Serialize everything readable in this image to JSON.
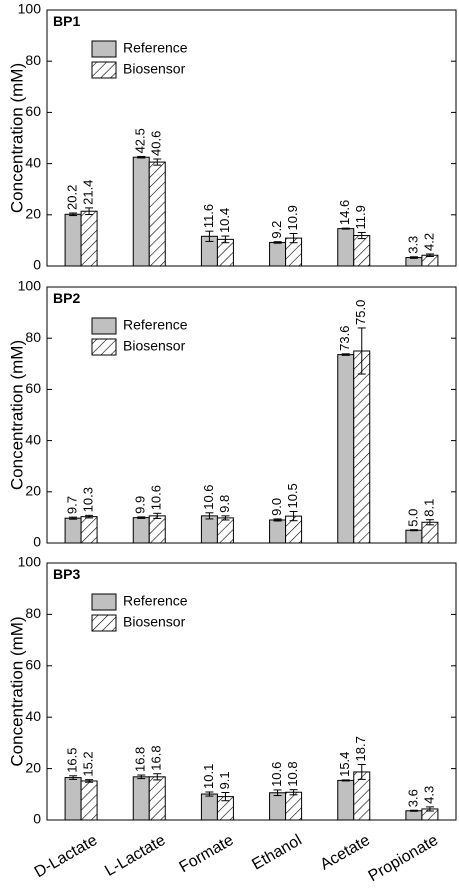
{
  "chart_data": [
    {
      "type": "bar",
      "title": "BP1",
      "y_label": "Concentration (mM)",
      "categories": [
        null,
        null,
        null,
        null,
        null,
        null
      ],
      "series": [
        {
          "name": "Reference",
          "color": "#c0c0c0",
          "values": [
            20.2,
            42.5,
            11.6,
            9.2,
            14.6,
            3.3
          ],
          "value_labels": [
            "20.2",
            "42.5",
            "11.6",
            "9.2",
            "14.6",
            "3.3"
          ],
          "errors": [
            0.5,
            0.3,
            2.0,
            0.3,
            0.2,
            0.3
          ]
        },
        {
          "name": "Biosensor",
          "color": "hatch",
          "values": [
            21.4,
            40.6,
            10.4,
            10.9,
            11.9,
            4.2
          ],
          "value_labels": [
            "21.4",
            "40.6",
            "10.4",
            "10.9",
            "11.9",
            "4.2"
          ],
          "errors": [
            1.3,
            1.2,
            1.3,
            1.8,
            1.2,
            0.5
          ]
        }
      ],
      "ylim": [
        0,
        100
      ],
      "yticks": [
        0,
        20,
        40,
        60,
        80,
        100
      ]
    },
    {
      "type": "bar",
      "title": "BP2",
      "y_label": "Concentration (mM)",
      "categories": [
        null,
        null,
        null,
        null,
        null,
        null
      ],
      "series": [
        {
          "name": "Reference",
          "color": "#c0c0c0",
          "values": [
            9.7,
            9.9,
            10.6,
            9.0,
            73.6,
            5.0
          ],
          "value_labels": [
            "9.7",
            "9.9",
            "10.6",
            "9.0",
            "73.6",
            "5.0"
          ],
          "errors": [
            0.4,
            0.3,
            1.2,
            0.4,
            0.3,
            0.2
          ]
        },
        {
          "name": "Biosensor",
          "color": "hatch",
          "values": [
            10.3,
            10.6,
            9.8,
            10.5,
            75.0,
            8.1
          ],
          "value_labels": [
            "10.3",
            "10.6",
            "9.8",
            "10.5",
            "75.0",
            "8.1"
          ],
          "errors": [
            0.5,
            1.0,
            0.8,
            1.8,
            9.0,
            1.0
          ]
        }
      ],
      "ylim": [
        0,
        100
      ],
      "yticks": [
        0,
        20,
        40,
        60,
        80,
        100
      ]
    },
    {
      "type": "bar",
      "title": "BP3",
      "y_label": "Concentration (mM)",
      "categories": [
        "D-Lactate",
        "L-Lactate",
        "Formate",
        "Ethanol",
        "Acetate",
        "Propionate"
      ],
      "series": [
        {
          "name": "Reference",
          "color": "#c0c0c0",
          "values": [
            16.5,
            16.8,
            10.1,
            10.6,
            15.4,
            3.6
          ],
          "value_labels": [
            "16.5",
            "16.8",
            "10.1",
            "10.6",
            "15.4",
            "3.6"
          ],
          "errors": [
            0.7,
            0.7,
            0.8,
            1.1,
            0.2,
            0.2
          ]
        },
        {
          "name": "Biosensor",
          "color": "hatch",
          "values": [
            15.2,
            16.8,
            9.1,
            10.8,
            18.7,
            4.3
          ],
          "value_labels": [
            "15.2",
            "16.8",
            "9.1",
            "10.8",
            "18.7",
            "4.3"
          ],
          "errors": [
            0.5,
            1.2,
            1.6,
            1.0,
            2.9,
            0.8
          ]
        }
      ],
      "ylim": [
        0,
        100
      ],
      "yticks": [
        0,
        20,
        40,
        60,
        80,
        100
      ]
    }
  ]
}
